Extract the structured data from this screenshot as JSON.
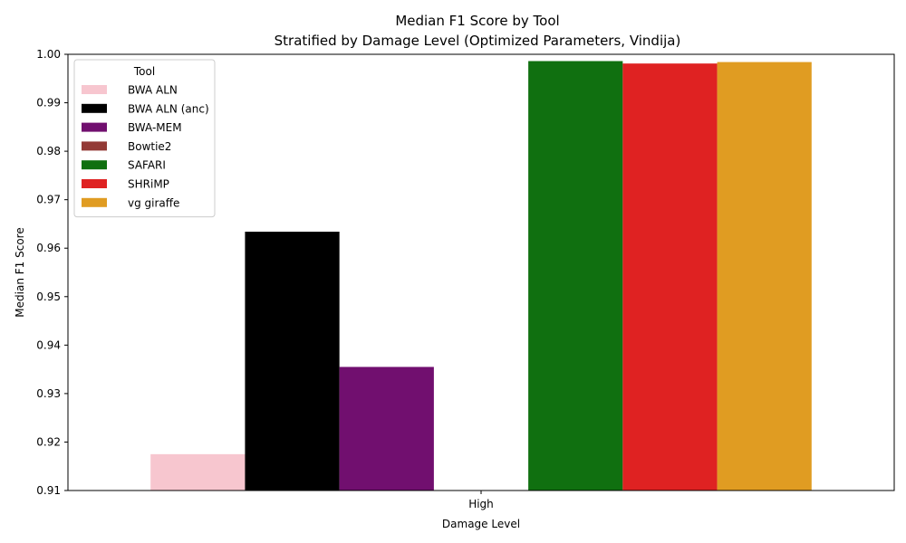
{
  "chart_data": {
    "type": "bar",
    "title": "Median F1 Score by Tool",
    "subtitle": "Stratified by Damage Level (Optimized Parameters, Vindija)",
    "xlabel": "Damage Level",
    "ylabel": "Median F1 Score",
    "categories": [
      "High"
    ],
    "ylim": [
      0.91,
      1.0
    ],
    "yticks": [
      "0.91",
      "0.92",
      "0.93",
      "0.94",
      "0.95",
      "0.96",
      "0.97",
      "0.98",
      "0.99",
      "1.00"
    ],
    "legend": {
      "title": "Tool",
      "placement": "top-left"
    },
    "series": [
      {
        "name": "BWA ALN",
        "color": "#f7c6cf",
        "values": [
          0.9175
        ]
      },
      {
        "name": "BWA ALN (anc)",
        "color": "#000000",
        "values": [
          0.9634
        ]
      },
      {
        "name": "BWA-MEM",
        "color": "#710f6f",
        "values": [
          0.9355
        ]
      },
      {
        "name": "Bowtie2",
        "color": "#933a36",
        "values": [
          0.91
        ]
      },
      {
        "name": "SAFARI",
        "color": "#107010",
        "values": [
          0.9986
        ]
      },
      {
        "name": "SHRiMP",
        "color": "#df2222",
        "values": [
          0.9981
        ]
      },
      {
        "name": "vg giraffe",
        "color": "#e09c22",
        "values": [
          0.9984
        ]
      }
    ]
  }
}
